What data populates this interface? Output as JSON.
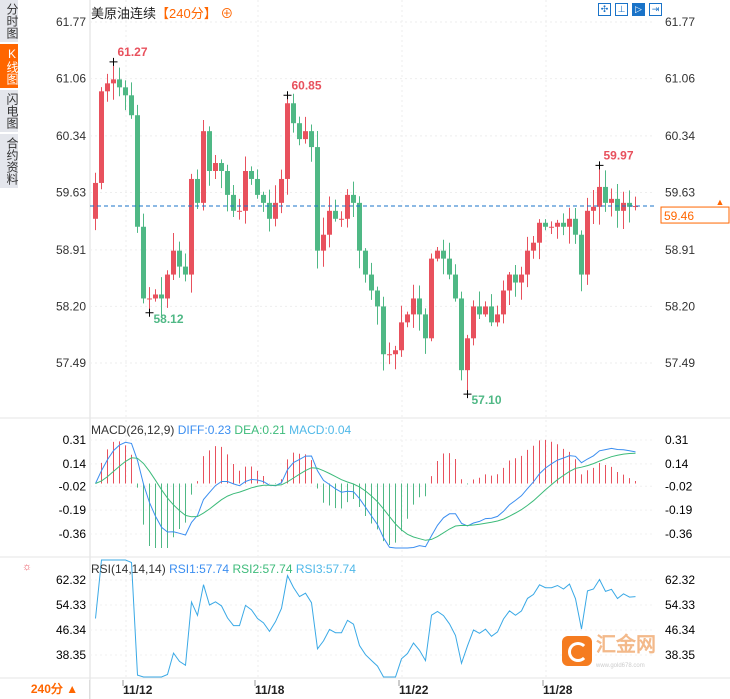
{
  "sidebar": {
    "tabs": [
      {
        "label": "分时图"
      },
      {
        "label": "K线图",
        "active": true
      },
      {
        "label": "闪电图"
      },
      {
        "label": "合约资料"
      }
    ]
  },
  "header": {
    "title": "美原油连续",
    "period": "【240分】",
    "zoom_icon": "zoom-in-icon",
    "tools": [
      "crosshair-icon",
      "fit-icon",
      "draw-icon",
      "exit-icon"
    ]
  },
  "price_axis": {
    "ticks": [
      "61.77",
      "61.06",
      "60.34",
      "59.63",
      "58.91",
      "58.20",
      "57.49"
    ],
    "min": 57.49,
    "max": 61.77,
    "current": "59.46",
    "current_value": 59.46
  },
  "annotations": {
    "high1": "61.27",
    "high2": "60.85",
    "high3": "59.97",
    "low1": "58.12",
    "low2": "57.10"
  },
  "macd": {
    "label": "MACD(26,12,9)",
    "diff": "DIFF:0.23",
    "dea": "DEA:0.21",
    "macd": "MACD:0.04",
    "ticks": [
      "0.31",
      "0.14",
      "-0.02",
      "-0.19",
      "-0.36"
    ],
    "min": -0.36,
    "max": 0.31
  },
  "rsi": {
    "label": "RSI(14,14,14)",
    "rsi1": "RSI1:57.74",
    "rsi2": "RSI2:57.74",
    "rsi3": "RSI3:57.74",
    "ticks": [
      "62.32",
      "54.33",
      "46.34",
      "38.35"
    ],
    "min": 38.35,
    "max": 62.32
  },
  "xaxis": {
    "ticks": [
      "11/12",
      "11/18",
      "11/22",
      "11/28"
    ],
    "tick_index": [
      5,
      27,
      51,
      75
    ]
  },
  "period_button": "240分 ▲",
  "logo": {
    "text": "汇金网",
    "site": "www.gold678.com"
  },
  "colors": {
    "up": "#e8515d",
    "down": "#4fb885",
    "diff": "#3b8ef0",
    "dea": "#3dbb7a",
    "rsi": "#3aa9e6",
    "accent": "#ff6600"
  },
  "chart_data": {
    "type": "candlestick",
    "closes": [
      59.75,
      60.9,
      61.0,
      61.05,
      60.95,
      60.85,
      60.6,
      59.2,
      58.3,
      58.3,
      58.35,
      58.3,
      58.6,
      58.9,
      58.7,
      58.6,
      59.8,
      59.5,
      60.4,
      59.9,
      60.0,
      59.9,
      59.6,
      59.4,
      59.4,
      59.9,
      59.8,
      59.6,
      59.5,
      59.3,
      59.5,
      59.8,
      60.75,
      60.5,
      60.3,
      60.4,
      60.2,
      58.9,
      59.1,
      59.4,
      59.3,
      59.3,
      59.6,
      59.5,
      58.9,
      58.6,
      58.4,
      58.2,
      57.6,
      57.6,
      57.65,
      58.0,
      58.1,
      58.3,
      58.1,
      57.8,
      58.8,
      58.9,
      58.8,
      58.6,
      58.3,
      57.4,
      57.8,
      58.2,
      58.1,
      58.2,
      58.0,
      58.1,
      58.4,
      58.6,
      58.5,
      58.6,
      58.9,
      59.0,
      59.25,
      59.2,
      59.2,
      59.25,
      59.2,
      59.3,
      59.1,
      58.6,
      59.4,
      59.45,
      59.7,
      59.5,
      59.55,
      59.4,
      59.5,
      59.45,
      59.46
    ],
    "first_open": 59.3,
    "extremes": [
      {
        "index": 3,
        "high": 61.27
      },
      {
        "index": 32,
        "high": 60.85
      },
      {
        "index": 84,
        "high": 59.97
      },
      {
        "index": 9,
        "low": 58.12
      },
      {
        "index": 62,
        "low": 57.1
      }
    ]
  }
}
